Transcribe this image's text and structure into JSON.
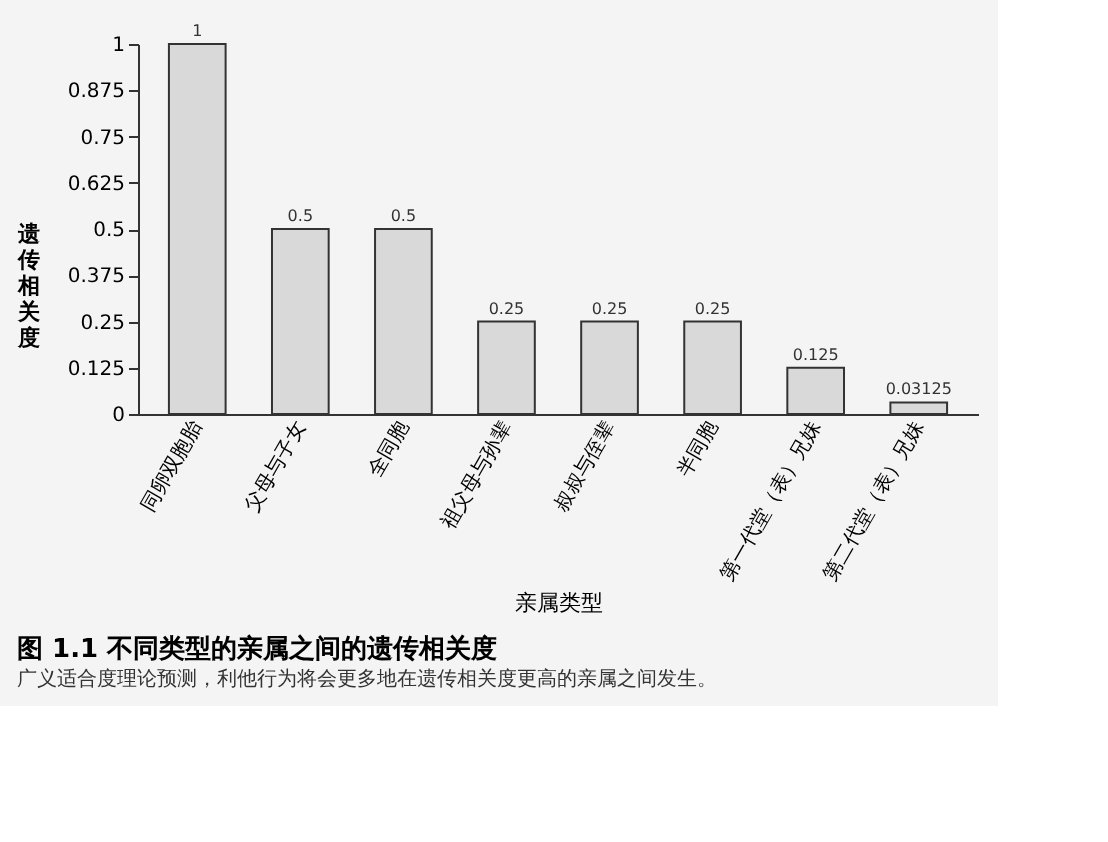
{
  "chart_data": {
    "type": "bar",
    "title": "图 1.1 不同类型的亲属之间的遗传相关度",
    "annotations": [
      "广义适合度理论预测，利他行为将会更多地在遗传相关度更高的亲属之间发生。"
    ],
    "xlabel": "亲属类型",
    "ylabel": "遗传相关度",
    "categories": [
      "同卵双胞胎",
      "父母与子女",
      "全同胞",
      "祖父母与孙辈",
      "叔叔与侄辈",
      "半同胞",
      "第一代堂（表）兄妹",
      "第二代堂（表）兄妹"
    ],
    "values": [
      1,
      0.5,
      0.5,
      0.25,
      0.25,
      0.25,
      0.125,
      0.03125
    ],
    "color": "#d9d9d9",
    "ylim": [
      0,
      1
    ],
    "yticks": [
      0,
      0.125,
      0.25,
      0.375,
      0.5,
      0.625,
      0.75,
      0.875,
      1
    ],
    "data_labels": true,
    "grid": false
  }
}
